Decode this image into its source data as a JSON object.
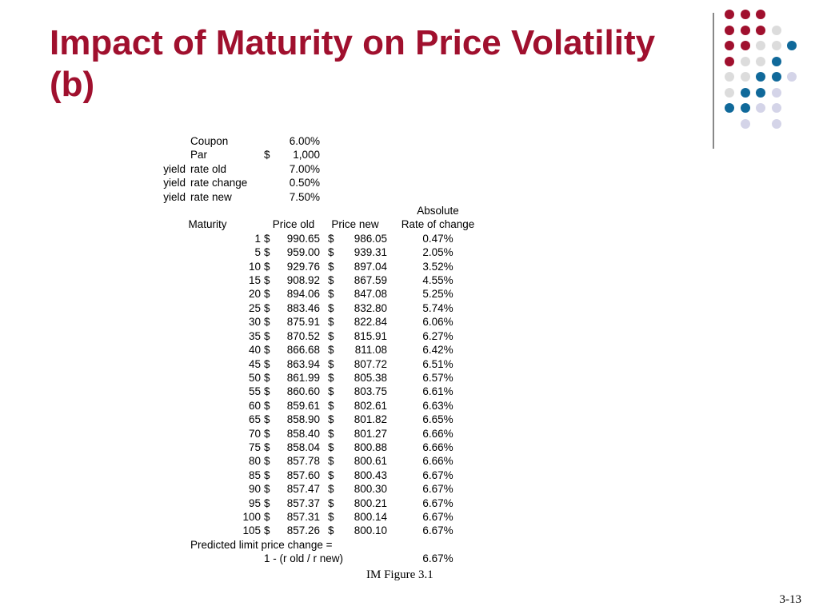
{
  "slide": {
    "title": "Impact of Maturity on Price Volatility (b)",
    "caption": "IM Figure 3.1",
    "page_number": "3-13"
  },
  "colors": {
    "title": "#a0102e",
    "dot_red": "#a0102e",
    "dot_blue": "#10699a",
    "dot_gray": "#dcdcdc",
    "dot_lavender": "#d4d4e8"
  },
  "inputs": [
    {
      "prefix": "",
      "label": "Coupon",
      "currency": "",
      "value": "6.00%"
    },
    {
      "prefix": "",
      "label": "Par",
      "currency": "$",
      "value": "1,000"
    },
    {
      "prefix": "yield",
      "label": "rate old",
      "currency": "",
      "value": "7.00%"
    },
    {
      "prefix": "yield",
      "label": "rate change",
      "currency": "",
      "value": "0.50%"
    },
    {
      "prefix": "yield",
      "label": "rate new",
      "currency": "",
      "value": "7.50%"
    }
  ],
  "table": {
    "header_top": "Absolute",
    "headers": [
      "Maturity",
      "Price old",
      "Price new",
      "Rate of change"
    ],
    "currency_symbol": "$",
    "rows": [
      {
        "maturity": "1",
        "price_old": "990.65",
        "price_new": "986.05",
        "rate": "0.47%"
      },
      {
        "maturity": "5",
        "price_old": "959.00",
        "price_new": "939.31",
        "rate": "2.05%"
      },
      {
        "maturity": "10",
        "price_old": "929.76",
        "price_new": "897.04",
        "rate": "3.52%"
      },
      {
        "maturity": "15",
        "price_old": "908.92",
        "price_new": "867.59",
        "rate": "4.55%"
      },
      {
        "maturity": "20",
        "price_old": "894.06",
        "price_new": "847.08",
        "rate": "5.25%"
      },
      {
        "maturity": "25",
        "price_old": "883.46",
        "price_new": "832.80",
        "rate": "5.74%"
      },
      {
        "maturity": "30",
        "price_old": "875.91",
        "price_new": "822.84",
        "rate": "6.06%"
      },
      {
        "maturity": "35",
        "price_old": "870.52",
        "price_new": "815.91",
        "rate": "6.27%"
      },
      {
        "maturity": "40",
        "price_old": "866.68",
        "price_new": "811.08",
        "rate": "6.42%"
      },
      {
        "maturity": "45",
        "price_old": "863.94",
        "price_new": "807.72",
        "rate": "6.51%"
      },
      {
        "maturity": "50",
        "price_old": "861.99",
        "price_new": "805.38",
        "rate": "6.57%"
      },
      {
        "maturity": "55",
        "price_old": "860.60",
        "price_new": "803.75",
        "rate": "6.61%"
      },
      {
        "maturity": "60",
        "price_old": "859.61",
        "price_new": "802.61",
        "rate": "6.63%"
      },
      {
        "maturity": "65",
        "price_old": "858.90",
        "price_new": "801.82",
        "rate": "6.65%"
      },
      {
        "maturity": "70",
        "price_old": "858.40",
        "price_new": "801.27",
        "rate": "6.66%"
      },
      {
        "maturity": "75",
        "price_old": "858.04",
        "price_new": "800.88",
        "rate": "6.66%"
      },
      {
        "maturity": "80",
        "price_old": "857.78",
        "price_new": "800.61",
        "rate": "6.66%"
      },
      {
        "maturity": "85",
        "price_old": "857.60",
        "price_new": "800.43",
        "rate": "6.67%"
      },
      {
        "maturity": "90",
        "price_old": "857.47",
        "price_new": "800.30",
        "rate": "6.67%"
      },
      {
        "maturity": "95",
        "price_old": "857.37",
        "price_new": "800.21",
        "rate": "6.67%"
      },
      {
        "maturity": "100",
        "price_old": "857.31",
        "price_new": "800.14",
        "rate": "6.67%"
      },
      {
        "maturity": "105",
        "price_old": "857.26",
        "price_new": "800.10",
        "rate": "6.67%"
      }
    ],
    "predicted_label": "Predicted limit price change =",
    "formula": "1 - (r old / r new)",
    "predicted_value": "6.67%"
  },
  "decoration": {
    "dot_rows": [
      [
        "red",
        "red",
        "red",
        null,
        null
      ],
      [
        "red",
        "red",
        "red",
        "gray",
        null
      ],
      [
        "red",
        "red",
        "gray",
        "gray",
        "blue"
      ],
      [
        "red",
        "gray",
        "gray",
        "blue",
        null
      ],
      [
        "gray",
        "gray",
        "blue",
        "blue",
        "lavender"
      ],
      [
        "gray",
        "blue",
        "blue",
        "lavender",
        null
      ],
      [
        "blue",
        "blue",
        "lavender",
        "lavender",
        null
      ],
      [
        null,
        "lavender",
        null,
        "lavender",
        null
      ]
    ]
  }
}
